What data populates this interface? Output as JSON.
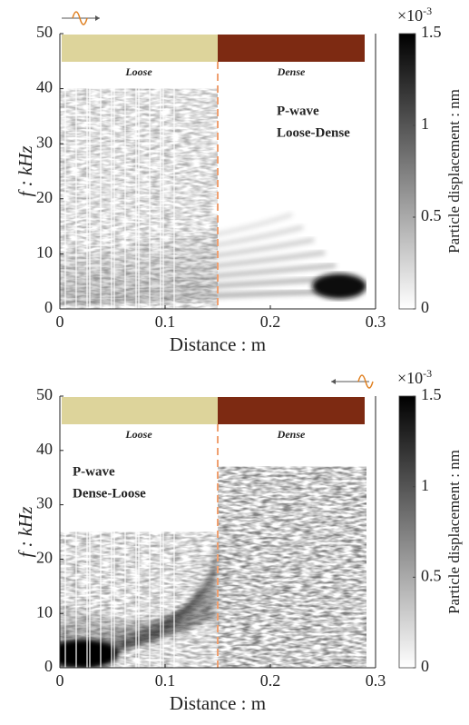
{
  "chart_data": [
    {
      "type": "heatmap",
      "material_labels": [
        "Loose",
        "Dense"
      ],
      "annotation": [
        "P-wave",
        "Loose-Dense"
      ],
      "xlabel": "Distance : m",
      "ylabel": "f : kHz",
      "xlim": [
        0,
        0.3
      ],
      "xticks": [
        0,
        0.1,
        0.2,
        0.3
      ],
      "ylim": [
        0,
        50
      ],
      "yticks": [
        0,
        10,
        20,
        30,
        40,
        50
      ],
      "boundary": 0.15,
      "colorbar": {
        "label": "Particle displacement : nm",
        "clim": [
          0,
          1.5
        ],
        "ticks": [
          0,
          0.5,
          1,
          1.5
        ],
        "multiplier": "×10",
        "exponent": "-3"
      }
    },
    {
      "type": "heatmap",
      "material_labels": [
        "Loose",
        "Dense"
      ],
      "annotation": [
        "P-wave",
        "Dense-Loose"
      ],
      "xlabel": "Distance : m",
      "ylabel": "f : kHz",
      "xlim": [
        0,
        0.3
      ],
      "xticks": [
        0,
        0.1,
        0.2,
        0.3
      ],
      "ylim": [
        0,
        50
      ],
      "yticks": [
        0,
        10,
        20,
        30,
        40,
        50
      ],
      "boundary": 0.15,
      "colorbar": {
        "label": "Particle displacement : nm",
        "clim": [
          0,
          1.5
        ],
        "ticks": [
          0,
          0.5,
          1,
          1.5
        ],
        "multiplier": "×10",
        "exponent": "-3"
      }
    }
  ]
}
